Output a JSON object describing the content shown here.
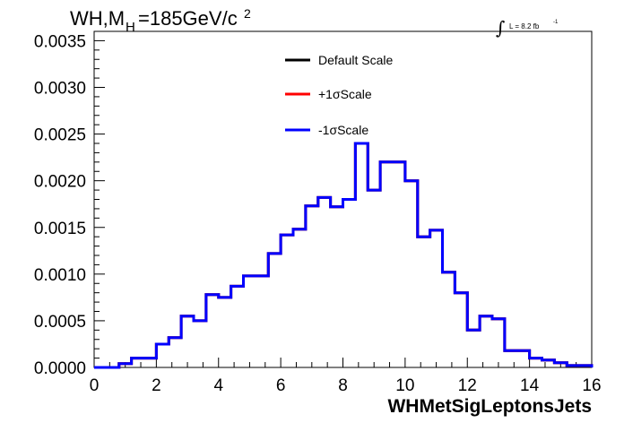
{
  "chart_data": {
    "type": "line",
    "title_main": "WH,M",
    "title_sub": "H",
    "title_rest": "=185GeV/c",
    "title_sup": "2",
    "lumi_label": "L = 8.2 fb",
    "lumi_sup": "-1",
    "lumi_symbol": "∫",
    "xlabel": "WHMetSigLeptonsJets",
    "ylabel": "",
    "xlim": [
      0,
      16
    ],
    "ylim": [
      0,
      0.0036
    ],
    "x_ticks": [
      "0",
      "2",
      "4",
      "6",
      "8",
      "10",
      "12",
      "14",
      "16"
    ],
    "y_ticks": [
      "0.0000",
      "0.0005",
      "0.0010",
      "0.0015",
      "0.0020",
      "0.0025",
      "0.0030",
      "0.0035"
    ],
    "legend_position": "top-center",
    "bin_edges": [
      0,
      0.4,
      0.8,
      1.2,
      1.6,
      2.0,
      2.4,
      2.8,
      3.2,
      3.6,
      4.0,
      4.4,
      4.8,
      5.2,
      5.6,
      6.0,
      6.4,
      6.8,
      7.2,
      7.6,
      8.0,
      8.4,
      8.8,
      9.2,
      9.6,
      10.0,
      10.4,
      10.8,
      11.2,
      11.6,
      12.0,
      12.4,
      12.8,
      13.2,
      13.6,
      14.0,
      14.4,
      14.8,
      15.2,
      15.6,
      16.0
    ],
    "series": [
      {
        "name": "Default Scale",
        "color": "#000000",
        "values": [
          0.0,
          0.0,
          4e-05,
          0.0001,
          0.0001,
          0.00025,
          0.00032,
          0.00055,
          0.0005,
          0.00078,
          0.00075,
          0.00087,
          0.00098,
          0.00098,
          0.00122,
          0.00142,
          0.00148,
          0.00173,
          0.00182,
          0.00172,
          0.0018,
          0.0024,
          0.0019,
          0.0022,
          0.0022,
          0.002,
          0.0014,
          0.00147,
          0.00102,
          0.0008,
          0.0004,
          0.00055,
          0.00052,
          0.00018,
          0.00018,
          0.0001,
          8e-05,
          5e-05,
          2e-05,
          2e-05,
          0.0
        ]
      },
      {
        "name": "+1σScale",
        "color": "#ff0000",
        "values": [
          0.0,
          0.0,
          4e-05,
          0.0001,
          0.0001,
          0.00025,
          0.00032,
          0.00055,
          0.0005,
          0.00078,
          0.00075,
          0.00087,
          0.00098,
          0.00098,
          0.00122,
          0.00142,
          0.00148,
          0.00173,
          0.00182,
          0.00172,
          0.0018,
          0.0024,
          0.0019,
          0.0022,
          0.0022,
          0.002,
          0.0014,
          0.00147,
          0.00102,
          0.0008,
          0.0004,
          0.00055,
          0.00052,
          0.00018,
          0.00018,
          0.0001,
          8e-05,
          5e-05,
          2e-05,
          2e-05,
          0.0
        ]
      },
      {
        "name": "-1σScale",
        "color": "#0000ff",
        "values": [
          0.0,
          0.0,
          4e-05,
          0.0001,
          0.0001,
          0.00025,
          0.00032,
          0.00055,
          0.0005,
          0.00078,
          0.00075,
          0.00087,
          0.00098,
          0.00098,
          0.00122,
          0.00142,
          0.00148,
          0.00173,
          0.00182,
          0.00172,
          0.0018,
          0.0024,
          0.0019,
          0.0022,
          0.0022,
          0.002,
          0.0014,
          0.00147,
          0.00102,
          0.0008,
          0.0004,
          0.00055,
          0.00052,
          0.00018,
          0.00018,
          0.0001,
          8e-05,
          5e-05,
          2e-05,
          2e-05,
          0.0
        ]
      }
    ]
  }
}
